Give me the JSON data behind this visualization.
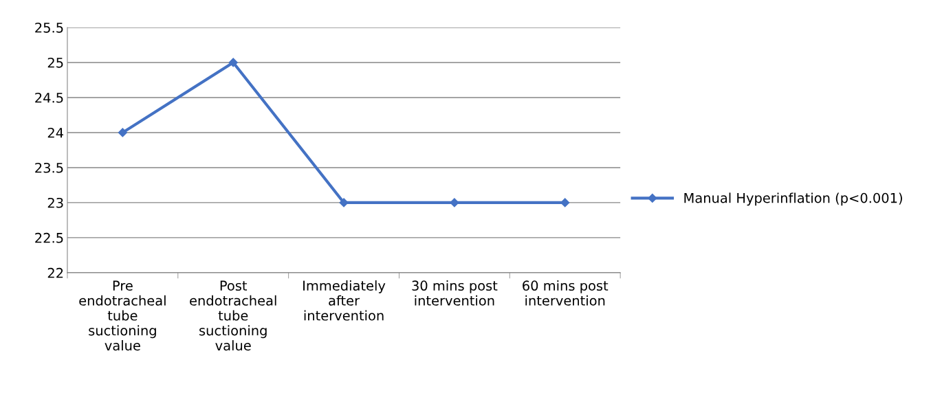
{
  "chart_data": {
    "type": "line",
    "categories": [
      "Pre\nendotracheal\ntube\nsuctioning\nvalue",
      "Post\nendotracheal\ntube\nsuctioning\nvalue",
      "Immediately\nafter\nintervention",
      "30 mins post\nintervention",
      "60 mins post\nintervention"
    ],
    "series": [
      {
        "name": "Manual Hyperinflation (p<0.001)",
        "color": "#4472c4",
        "values": [
          24,
          25,
          23,
          23,
          23
        ]
      }
    ],
    "ylim": [
      22,
      25.5
    ],
    "yticks": [
      22,
      22.5,
      23,
      23.5,
      24,
      24.5,
      25,
      25.5
    ],
    "grid": "y",
    "legend": "right",
    "marker": "diamond",
    "line_style": "solid"
  }
}
